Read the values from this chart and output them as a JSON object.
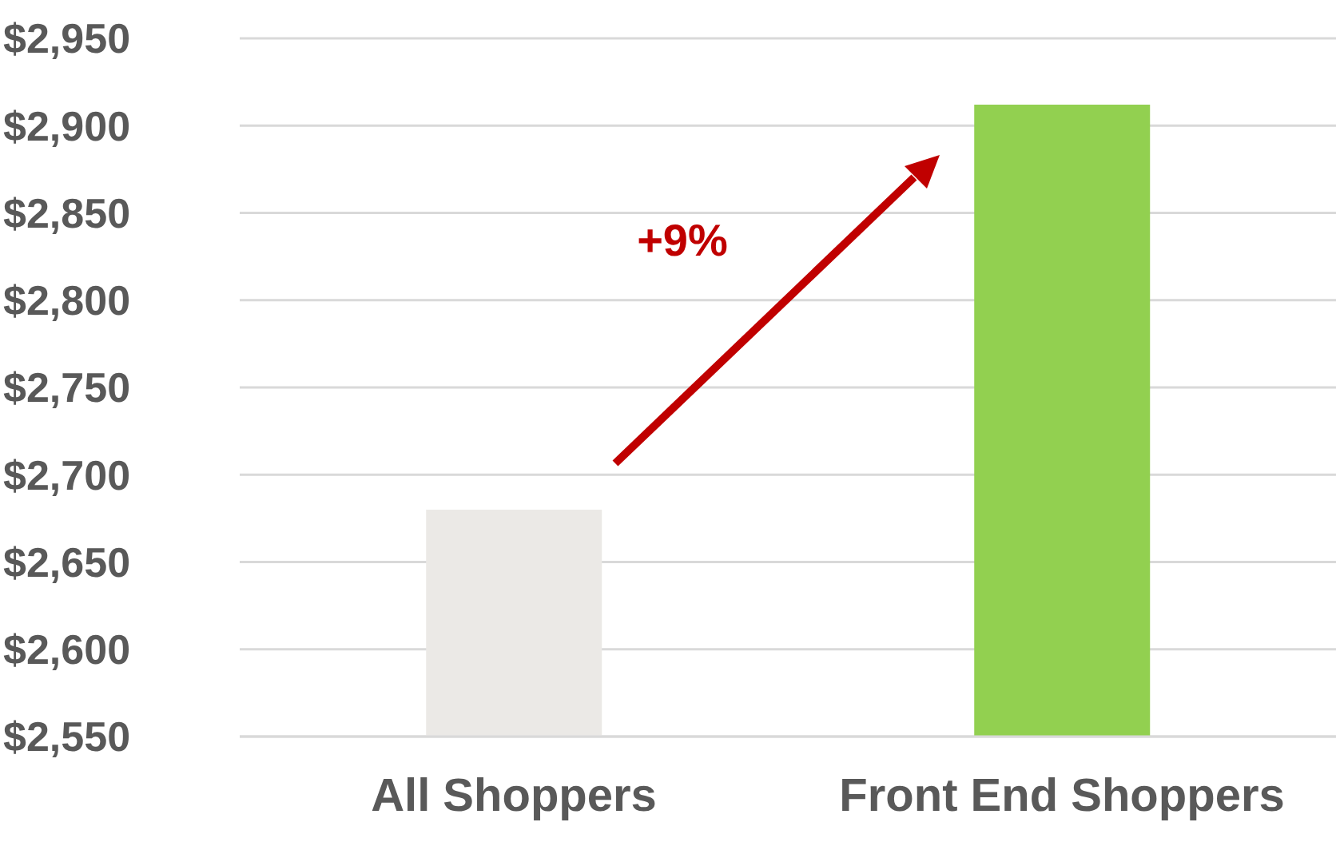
{
  "chart_data": {
    "type": "bar",
    "categories": [
      "All Shoppers",
      "Front End Shoppers"
    ],
    "values": [
      2680,
      2912
    ],
    "colors": [
      "#ebe9e6",
      "#92d050"
    ],
    "ylim": [
      2550,
      2950
    ],
    "yticks": [
      {
        "value": 2550,
        "label": "$2,550"
      },
      {
        "value": 2600,
        "label": "$2,600"
      },
      {
        "value": 2650,
        "label": "$2,650"
      },
      {
        "value": 2700,
        "label": "$2,700"
      },
      {
        "value": 2750,
        "label": "$2,750"
      },
      {
        "value": 2800,
        "label": "$2,800"
      },
      {
        "value": 2850,
        "label": "$2,850"
      },
      {
        "value": 2900,
        "label": "$2,900"
      },
      {
        "value": 2950,
        "label": "$2,950"
      }
    ],
    "grid": "y",
    "annotations": [
      "+9%"
    ]
  }
}
